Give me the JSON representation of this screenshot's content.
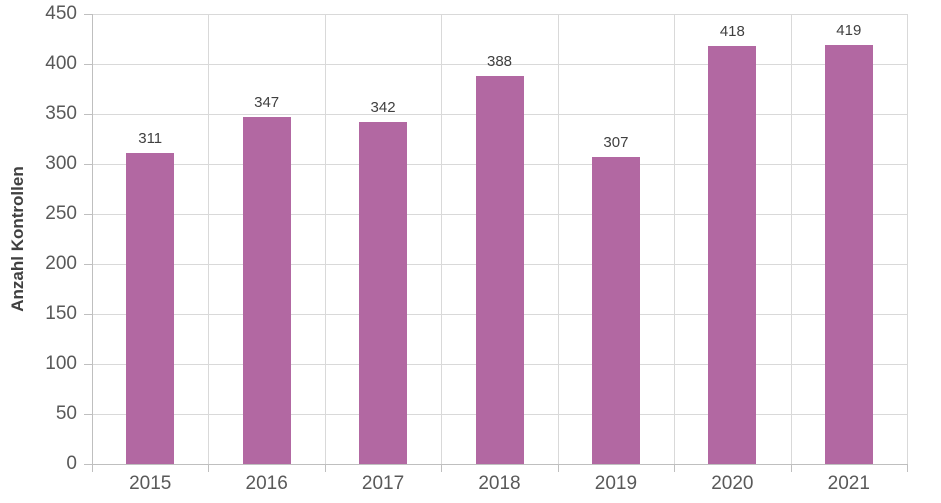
{
  "chart_data": {
    "type": "bar",
    "title": "",
    "categories": [
      "2015",
      "2016",
      "2017",
      "2018",
      "2019",
      "2020",
      "2021"
    ],
    "values": [
      311,
      347,
      342,
      388,
      307,
      418,
      419
    ],
    "xlabel": "",
    "ylabel": "Anzahl Kontrollen",
    "ylim": [
      0,
      450
    ],
    "ytick_step": 50,
    "yticks": [
      0,
      50,
      100,
      150,
      200,
      250,
      300,
      350,
      400,
      450
    ],
    "grid": "horizontal gridlines at every 50 units and vertical gridlines at category boundaries",
    "legend_position": "none",
    "data_labels_shown": true
  },
  "colors": {
    "bar": "#b268a2",
    "gridline": "#d9d9d9",
    "axis_line": "#bfbfbf",
    "tick_label": "#595959",
    "data_label": "#404040",
    "axis_title": "#404040",
    "background": "#ffffff"
  }
}
